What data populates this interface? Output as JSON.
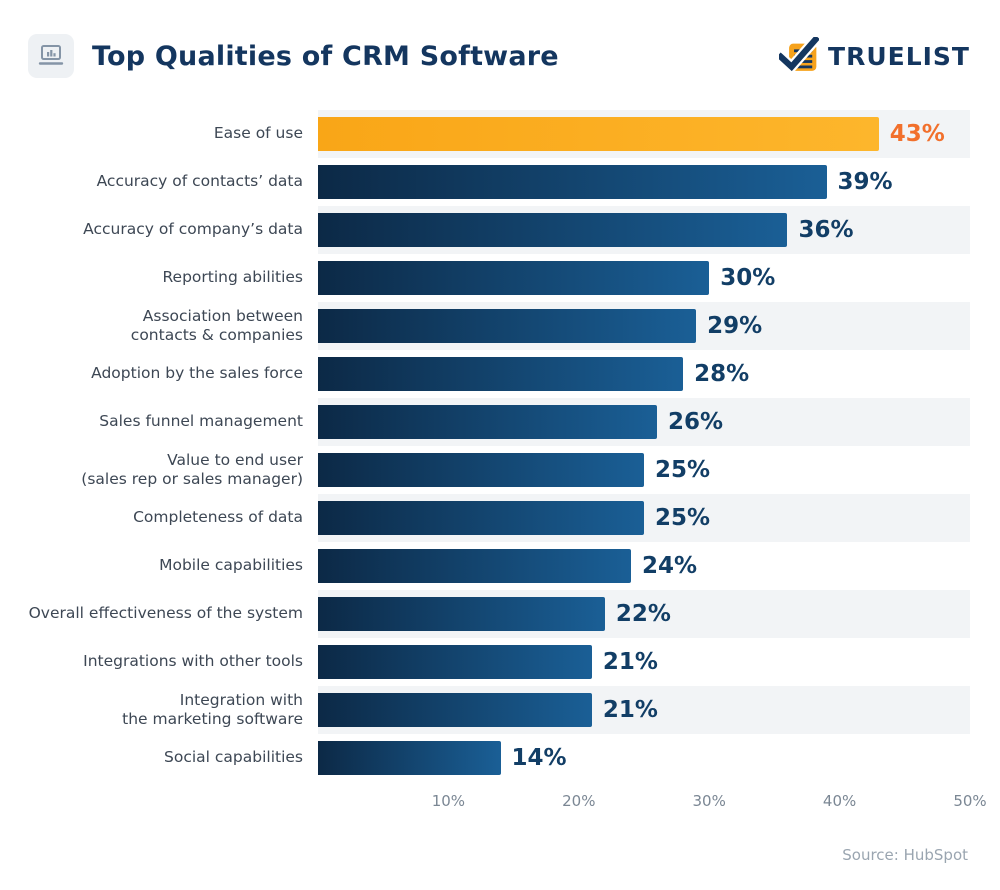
{
  "header": {
    "title": "Top Qualities of CRM Software",
    "icon": "presentation-chart-icon",
    "brand": {
      "name": "TRUELIST",
      "logo_orange": "#f6a21c",
      "logo_navy": "#14365f"
    }
  },
  "chart_data": {
    "type": "bar",
    "orientation": "horizontal",
    "title": "Top Qualities of CRM Software",
    "xlabel": "",
    "ylabel": "",
    "xlim": [
      0,
      50
    ],
    "grid": false,
    "legend": "none",
    "categories": [
      "Ease of use",
      "Accuracy of contacts’ data",
      "Accuracy of company’s data",
      "Reporting abilities",
      "Association between\ncontacts & companies",
      "Adoption by the sales force",
      "Sales funnel management",
      "Value to end user\n(sales rep or sales manager)",
      "Completeness of data",
      "Mobile capabilities",
      "Overall effectiveness of the system",
      "Integrations with other tools",
      "Integration with\nthe marketing software",
      "Social capabilities"
    ],
    "values": [
      43,
      39,
      36,
      30,
      29,
      28,
      26,
      25,
      25,
      24,
      22,
      21,
      21,
      14
    ],
    "value_labels": [
      "43%",
      "39%",
      "36%",
      "30%",
      "29%",
      "28%",
      "26%",
      "25%",
      "25%",
      "24%",
      "22%",
      "21%",
      "21%",
      "14%"
    ],
    "ticks": [
      "10%",
      "20%",
      "30%",
      "40%",
      "50%"
    ],
    "tick_values": [
      10,
      20,
      30,
      40,
      50
    ],
    "highlight_index": 0,
    "colors": {
      "bar_gradient_start": "#0c2946",
      "bar_gradient_end": "#1a5f96",
      "highlight_gradient_start": "#f9a617",
      "highlight_gradient_end": "#fdb62c",
      "value_text": "#123e66",
      "highlight_value_text": "#f2702c",
      "stripe": "#f2f4f6",
      "label_text": "#3d4754",
      "tick_text": "#7b8794"
    }
  },
  "source": {
    "text": "Source: HubSpot"
  }
}
